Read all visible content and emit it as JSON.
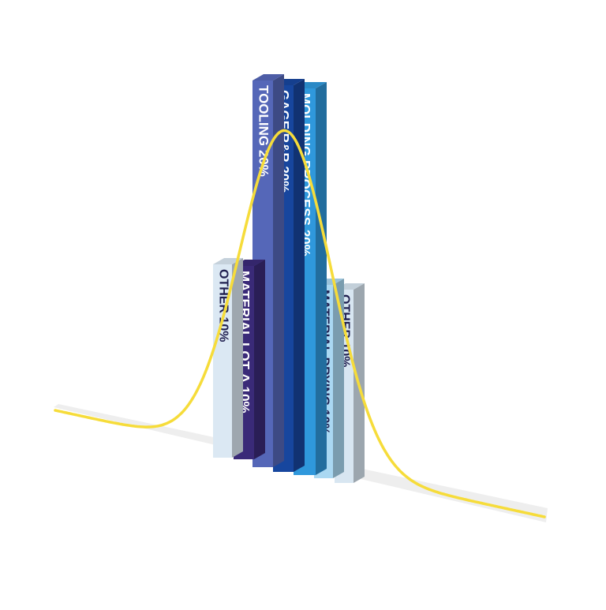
{
  "chart_data": {
    "type": "bar",
    "title": "",
    "xlabel": "",
    "ylabel": "",
    "categories": [
      "OTHER 10%",
      "MATERIAL LOT Δ 10%",
      "TOOLING 20%",
      "GAGE R&R 20%",
      "MOLDING PROCESS 20%",
      "MATERIAL DRYING 10%",
      "OTHER 10%"
    ],
    "values": [
      10,
      10,
      20,
      20,
      20,
      10,
      10
    ],
    "unit": "%",
    "ylim": [
      0,
      20
    ],
    "grid": false,
    "legend": "none",
    "overlay": "bell curve (normal distribution)",
    "colors": {
      "bars": [
        "#dbe8f3",
        "#3a2a78",
        "#5567b8",
        "#17469e",
        "#2f98dc",
        "#aad8f2",
        "#d8e6f1"
      ],
      "labels": [
        "#1f1f4f",
        "#ffffff",
        "#ffffff",
        "#ffffff",
        "#ffffff",
        "#1f1f4f",
        "#1f1f4f"
      ],
      "curve": "#f6dc3a",
      "floor": "#eeeeee"
    }
  }
}
